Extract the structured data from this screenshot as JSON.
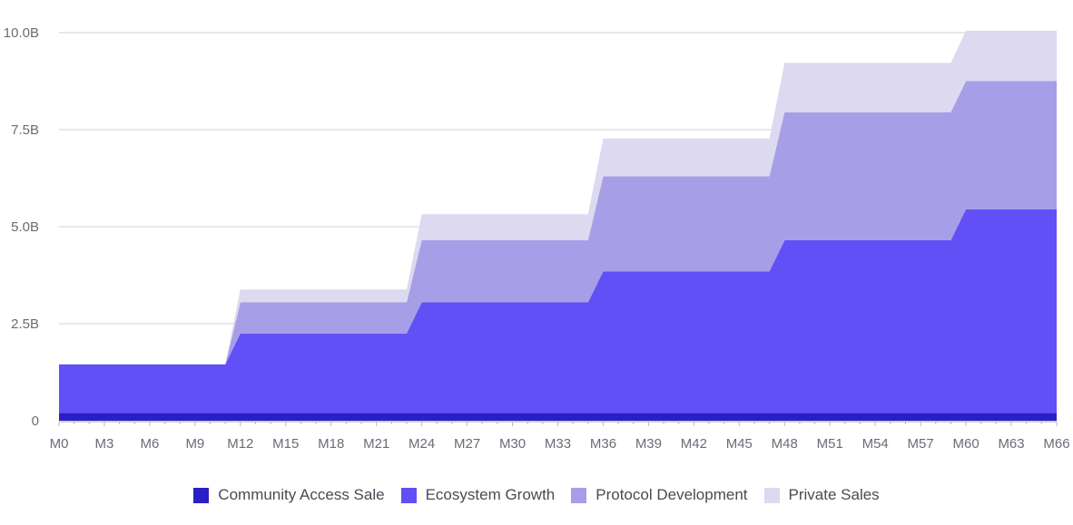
{
  "chart_data": {
    "type": "area",
    "stacked": true,
    "step": true,
    "title": "",
    "xlabel": "",
    "ylabel": "",
    "ylim": [
      0,
      10
    ],
    "y_ticks": [
      0,
      2.5,
      5,
      7.5,
      10
    ],
    "y_tick_labels": [
      "0",
      "2.5B",
      "5.0B",
      "7.5B",
      "10.0B"
    ],
    "x_range": [
      0,
      66
    ],
    "x_ticks": [
      0,
      3,
      6,
      9,
      12,
      15,
      18,
      21,
      24,
      27,
      30,
      33,
      36,
      39,
      42,
      45,
      48,
      51,
      54,
      57,
      60,
      63,
      66
    ],
    "x_tick_labels": [
      "M0",
      "M3",
      "M6",
      "M9",
      "M12",
      "M15",
      "M18",
      "M21",
      "M24",
      "M27",
      "M30",
      "M33",
      "M36",
      "M39",
      "M42",
      "M45",
      "M48",
      "M51",
      "M54",
      "M57",
      "M60",
      "M63",
      "M66"
    ],
    "step_months": [
      11,
      23,
      35,
      47,
      59
    ],
    "ramp_months": 1,
    "series": [
      {
        "name": "Community Access Sale",
        "color": "#2a1fc4",
        "levels": [
          0.2,
          0.2,
          0.2,
          0.2,
          0.2,
          0.2
        ]
      },
      {
        "name": "Ecosystem Growth",
        "color": "#6150f6",
        "levels": [
          1.25,
          2.05,
          2.85,
          3.65,
          4.45,
          5.25
        ]
      },
      {
        "name": "Protocol Development",
        "color": "#a69ee6",
        "levels": [
          0,
          0.8,
          1.6,
          2.45,
          3.3,
          3.3
        ]
      },
      {
        "name": "Private Sales",
        "color": "#dcd9f0",
        "levels": [
          0,
          0.33,
          0.67,
          0.97,
          1.27,
          1.3
        ]
      }
    ]
  }
}
